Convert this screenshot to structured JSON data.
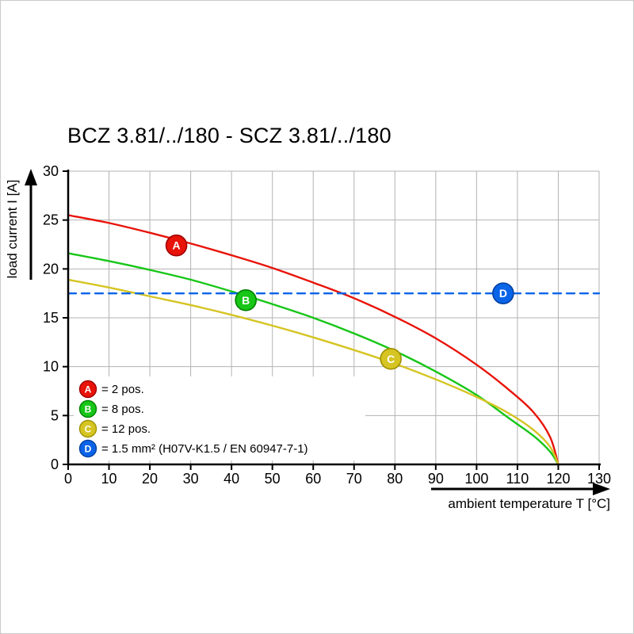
{
  "chart_data": {
    "type": "line",
    "title": "BCZ 3.81/../180 - SCZ 3.81/../180",
    "xlabel": "ambient temperature T [°C]",
    "ylabel": "load current I [A]",
    "xlim": [
      0,
      130
    ],
    "ylim": [
      0,
      30
    ],
    "xticks": [
      0,
      10,
      20,
      30,
      40,
      50,
      60,
      70,
      80,
      90,
      100,
      110,
      120,
      130
    ],
    "yticks": [
      0,
      5,
      10,
      15,
      20,
      25,
      30
    ],
    "grid": true,
    "grid_color": "#b3b3b3",
    "legend_position": "inside-bottom-left",
    "series": [
      {
        "name": "A",
        "legend_label": "= 2 pos.",
        "color": "#e81309",
        "edge_color": "#a00000",
        "line_style": "solid",
        "marker": {
          "x": 26.5,
          "y": 22.4
        },
        "points": [
          [
            0,
            25.5
          ],
          [
            10,
            24.7
          ],
          [
            20,
            23.7
          ],
          [
            30,
            22.6
          ],
          [
            40,
            21.4
          ],
          [
            50,
            20.1
          ],
          [
            60,
            18.6
          ],
          [
            70,
            17.0
          ],
          [
            80,
            15.1
          ],
          [
            90,
            12.9
          ],
          [
            100,
            10.2
          ],
          [
            108,
            7.6
          ],
          [
            114,
            5.3
          ],
          [
            118,
            2.8
          ],
          [
            120,
            0
          ]
        ]
      },
      {
        "name": "B",
        "legend_label": "= 8 pos.",
        "color": "#17c617",
        "edge_color": "#008000",
        "line_style": "solid",
        "marker": {
          "x": 43.5,
          "y": 16.8
        },
        "points": [
          [
            0,
            21.6
          ],
          [
            10,
            20.8
          ],
          [
            20,
            19.9
          ],
          [
            30,
            18.9
          ],
          [
            40,
            17.7
          ],
          [
            50,
            16.4
          ],
          [
            60,
            15.0
          ],
          [
            70,
            13.4
          ],
          [
            80,
            11.6
          ],
          [
            90,
            9.5
          ],
          [
            100,
            7.1
          ],
          [
            108,
            4.7
          ],
          [
            114,
            2.9
          ],
          [
            118,
            1.3
          ],
          [
            120,
            0
          ]
        ]
      },
      {
        "name": "C",
        "legend_label": "= 12 pos.",
        "color": "#d5c422",
        "edge_color": "#9f9100",
        "line_style": "solid",
        "marker": {
          "x": 79,
          "y": 10.8
        },
        "points": [
          [
            0,
            18.9
          ],
          [
            10,
            18.1
          ],
          [
            20,
            17.2
          ],
          [
            30,
            16.3
          ],
          [
            40,
            15.3
          ],
          [
            50,
            14.2
          ],
          [
            60,
            13.0
          ],
          [
            70,
            11.7
          ],
          [
            80,
            10.3
          ],
          [
            90,
            8.7
          ],
          [
            100,
            6.9
          ],
          [
            108,
            5.2
          ],
          [
            114,
            3.5
          ],
          [
            118,
            1.8
          ],
          [
            120,
            0
          ]
        ]
      },
      {
        "name": "D",
        "legend_label": "= 1.5 mm² (H07V-K1.5 / EN 60947-7-1)",
        "color": "#0a64e8",
        "edge_color": "#0040a0",
        "line_style": "dashed",
        "marker": {
          "x": 106.5,
          "y": 17.5
        },
        "points": [
          [
            0,
            17.5
          ],
          [
            130,
            17.5
          ]
        ]
      }
    ]
  }
}
